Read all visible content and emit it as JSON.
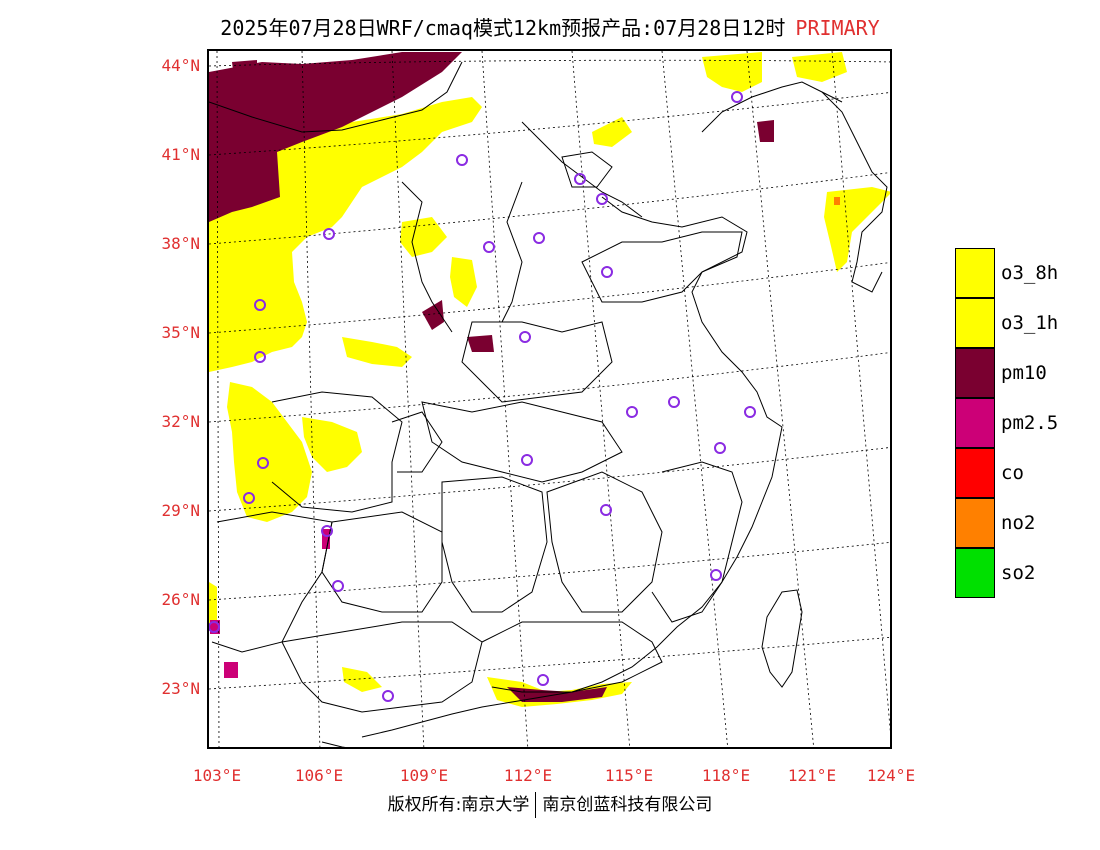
{
  "title": {
    "main": "2025年07月28日WRF/cmaq模式12km预报产品:07月28日12时",
    "tag": "PRIMARY"
  },
  "colors": {
    "o3_8h": "#ffff00",
    "o3_1h": "#ffff00",
    "pm10": "#7a0030",
    "pm2_5": "#cc0077",
    "co": "#ff0000",
    "no2": "#ff8000",
    "so2": "#00e000",
    "label_red": "#e03030",
    "station_ring": "#8a2be2"
  },
  "axes": {
    "lat_labels": [
      "44°N",
      "41°N",
      "38°N",
      "35°N",
      "32°N",
      "29°N",
      "26°N",
      "23°N"
    ],
    "lon_labels": [
      "103°E",
      "106°E",
      "109°E",
      "112°E",
      "115°E",
      "118°E",
      "121°E",
      "124°E"
    ]
  },
  "legend": [
    {
      "key": "o3_8h",
      "label": "o3_8h"
    },
    {
      "key": "o3_1h",
      "label": "o3_1h"
    },
    {
      "key": "pm10",
      "label": "pm10"
    },
    {
      "key": "pm2_5",
      "label": "pm2.5"
    },
    {
      "key": "co",
      "label": "co"
    },
    {
      "key": "no2",
      "label": "no2"
    },
    {
      "key": "so2",
      "label": "so2"
    }
  ],
  "footer": {
    "left": "版权所有:南京大学",
    "right": "南京创蓝科技有限公司"
  }
}
